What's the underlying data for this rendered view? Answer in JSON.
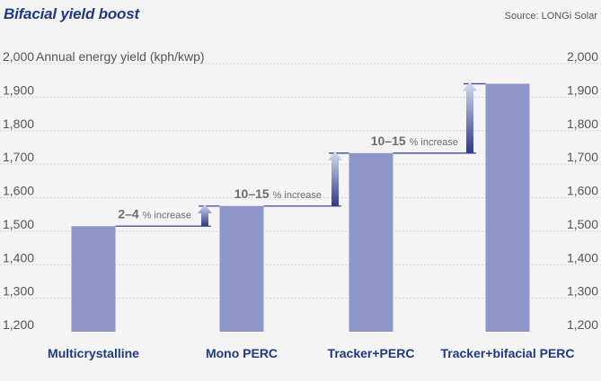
{
  "header": {
    "title": "Bifacial yield boost",
    "source": "Source: LONGi Solar"
  },
  "colors": {
    "bar": "#8d96c6",
    "connector": "#3c4a9a",
    "arrow_top": "#d7dcef",
    "arrow_bottom": "#2c3a8a",
    "title": "#1f3a82"
  },
  "chart_data": {
    "type": "bar",
    "ylabel": "Annual energy yield (kph/kwp)",
    "ylim": [
      1200,
      2000
    ],
    "yticks": [
      1200,
      1300,
      1400,
      1500,
      1600,
      1700,
      1800,
      1900,
      2000
    ],
    "ytick_labels": [
      "1,200",
      "1,300",
      "1,400",
      "1,500",
      "1,600",
      "1,700",
      "1,800",
      "1,900",
      "2,000"
    ],
    "grid": true,
    "categories": [
      "Multicrystalline",
      "Mono PERC",
      "Tracker+PERC",
      "Tracker+bifacial PERC"
    ],
    "values": [
      1515,
      1575,
      1733,
      1940
    ],
    "annotations": [
      {
        "range": "2–4",
        "suffix": "% increase",
        "from": 0,
        "to": 1
      },
      {
        "range": "10–15",
        "suffix": "% increase",
        "from": 1,
        "to": 2
      },
      {
        "range": "10–15",
        "suffix": "% increase",
        "from": 2,
        "to": 3
      }
    ]
  }
}
